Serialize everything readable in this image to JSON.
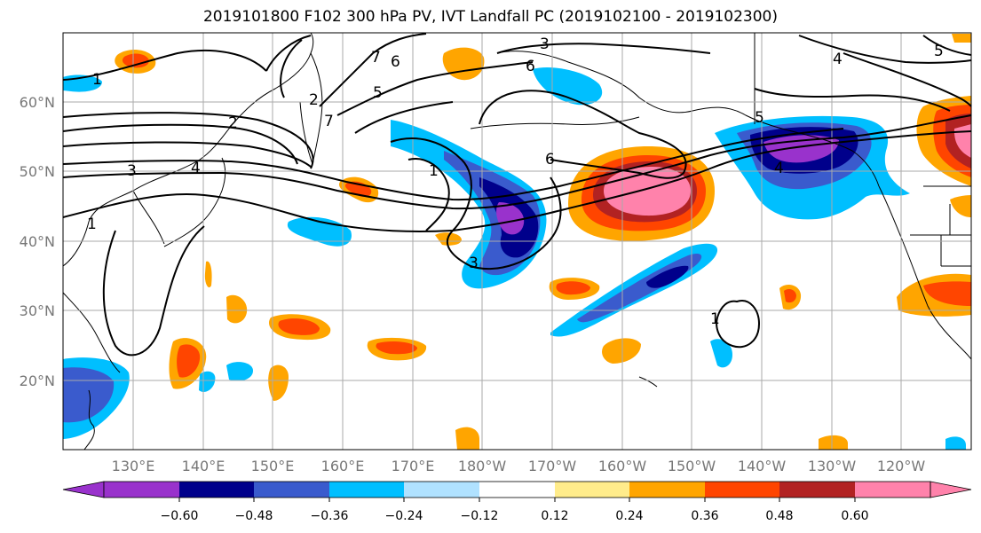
{
  "title": "2019101800 F102 300 hPa PV, IVT Landfall PC (2019102100 - 2019102300)",
  "map": {
    "lat_labels": [
      "60°N",
      "50°N",
      "40°N",
      "30°N",
      "20°N"
    ],
    "lon_labels": [
      "130°E",
      "140°E",
      "150°E",
      "160°E",
      "170°E",
      "180°W",
      "170°W",
      "160°W",
      "150°W",
      "140°W",
      "130°W",
      "120°W"
    ],
    "contour_labels": [
      "1",
      "2",
      "3",
      "4",
      "5",
      "6",
      "7",
      "1",
      "2",
      "5",
      "6",
      "1",
      "3",
      "4",
      "5",
      "3",
      "1",
      "7",
      "6",
      "4"
    ]
  },
  "colorbar": {
    "tick_labels": [
      "−0.60",
      "−0.48",
      "−0.36",
      "−0.24",
      "−0.12",
      "0.12",
      "0.24",
      "0.36",
      "0.48",
      "0.60"
    ],
    "colors": [
      "#9932cc",
      "#00008b",
      "#3a5bcd",
      "#00bfff",
      "#b0e2ff",
      "#ffffff",
      "#ffec8b",
      "#ffa500",
      "#ff4500",
      "#b22222",
      "#ff82ab"
    ]
  }
}
